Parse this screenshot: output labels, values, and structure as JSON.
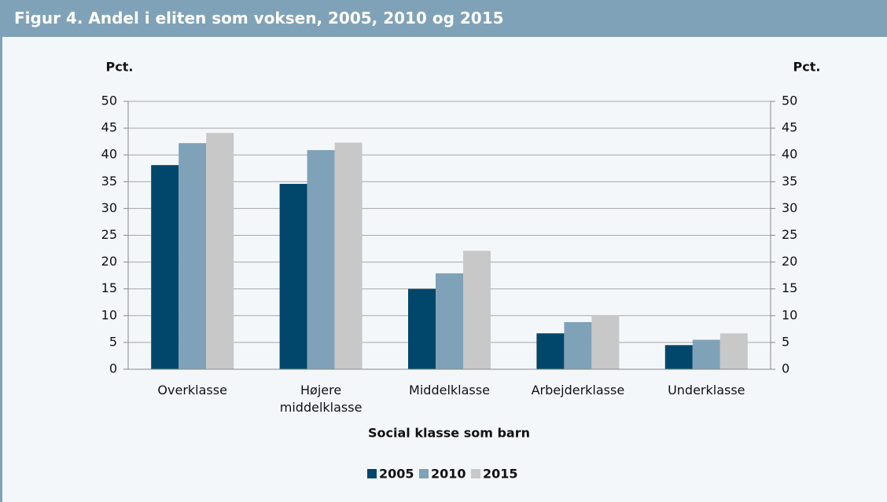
{
  "chart_data": {
    "type": "bar",
    "title": "Figur 4. Andel i eliten som voksen, 2005, 2010 og 2015",
    "y_label": "Pct.",
    "y2_label": "Pct.",
    "x_label": "Social klasse som barn",
    "categories": [
      "Overklasse",
      "Højere middelklasse",
      "Middelklasse",
      "Arbejderklasse",
      "Underklasse"
    ],
    "series": [
      {
        "name": "2005",
        "color": "#00476b",
        "values": [
          38.1,
          34.6,
          15.0,
          6.7,
          4.5
        ]
      },
      {
        "name": "2010",
        "color": "#7fa2b8",
        "values": [
          42.2,
          40.9,
          17.9,
          8.8,
          5.5
        ]
      },
      {
        "name": "2015",
        "color": "#c8c8c8",
        "values": [
          44.1,
          42.3,
          22.1,
          10.1,
          6.7
        ]
      }
    ],
    "ylim": [
      0,
      50
    ],
    "yticks": [
      0,
      5,
      10,
      15,
      20,
      25,
      30,
      35,
      40,
      45,
      50
    ],
    "y2lim": [
      0,
      50
    ],
    "y2ticks": [
      0,
      5,
      10,
      15,
      20,
      25,
      30,
      35,
      40,
      45,
      50
    ],
    "legend": "bottom"
  }
}
